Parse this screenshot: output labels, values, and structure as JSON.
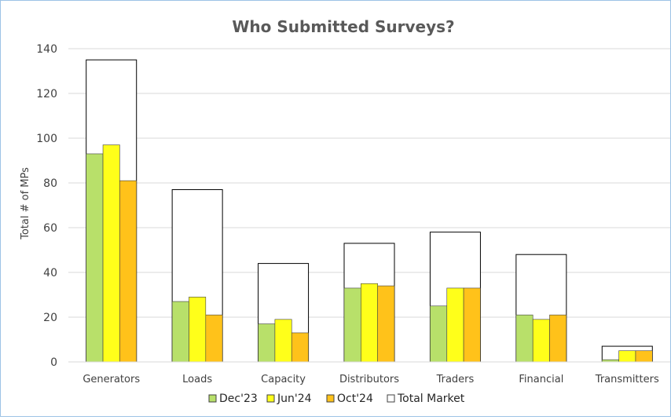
{
  "chart_data": {
    "type": "bar",
    "title": "Who Submitted Surveys?",
    "xlabel": "",
    "ylabel": "Total # of MPs",
    "ylim": [
      0,
      140
    ],
    "yticks": [
      0,
      20,
      40,
      60,
      80,
      100,
      120,
      140
    ],
    "grid": true,
    "legend_position": "bottom",
    "categories": [
      "Generators",
      "Loads",
      "Capacity",
      "Distributors",
      "Traders",
      "Financial",
      "Transmitters"
    ],
    "total_series": {
      "name": "Total Market",
      "color": "#ffffff",
      "stroke": "#000000",
      "values": [
        135,
        77,
        44,
        53,
        58,
        48,
        7
      ]
    },
    "series": [
      {
        "name": "Dec'23",
        "color": "#b8e06a",
        "stroke": "#404040",
        "values": [
          93,
          27,
          17,
          33,
          25,
          21,
          1
        ]
      },
      {
        "name": "Jun'24",
        "color": "#ffff1a",
        "stroke": "#404040",
        "values": [
          97,
          29,
          19,
          35,
          33,
          19,
          5
        ]
      },
      {
        "name": "Oct'24",
        "color": "#ffc21a",
        "stroke": "#404040",
        "values": [
          81,
          21,
          13,
          34,
          33,
          21,
          5
        ]
      }
    ]
  }
}
